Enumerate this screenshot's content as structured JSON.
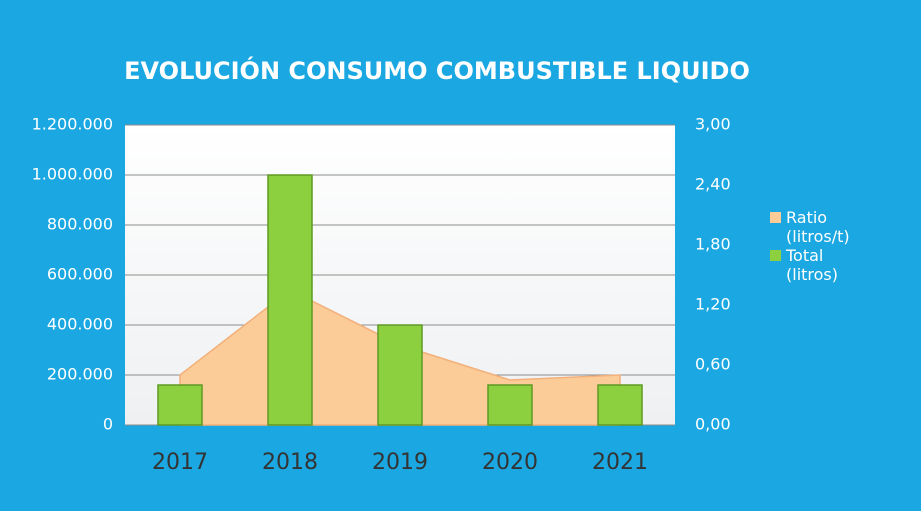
{
  "chart_data": {
    "type": "bar",
    "title": "EVOLUCIÓN CONSUMO COMBUSTIBLE LIQUIDO",
    "categories": [
      "2017",
      "2018",
      "2019",
      "2020",
      "2021"
    ],
    "series": [
      {
        "name": "Ratio (litros/t)",
        "type": "area",
        "axis": "y2",
        "color": "#fbcb98",
        "values": [
          0.5,
          1.35,
          0.8,
          0.45,
          0.5
        ]
      },
      {
        "name": "Total (litros)",
        "type": "bar",
        "color": "#8ccf3f",
        "values": [
          160000,
          1000000,
          400000,
          160000,
          160000
        ]
      }
    ],
    "ylim": [
      0,
      1200000
    ],
    "yticks": [
      0,
      {
        "value": 200000,
        "label": "200.000"
      },
      {
        "value": 400000,
        "label": "400.000"
      },
      {
        "value": 600000,
        "label": "600.000"
      },
      {
        "value": 800000,
        "label": "800.000"
      },
      {
        "value": 1000000,
        "label": "1.000.000"
      },
      {
        "value": 1200000,
        "label": "1.200.000"
      }
    ],
    "y2lim": [
      0,
      3
    ],
    "y2ticks": [
      {
        "value": 0,
        "label": "0,00"
      },
      {
        "value": 0.6,
        "label": "0,60"
      },
      {
        "value": 1.2,
        "label": "1,20"
      },
      {
        "value": 1.8,
        "label": "1,80"
      },
      {
        "value": 2.4,
        "label": "2,40"
      },
      {
        "value": 3,
        "label": "3,00"
      }
    ],
    "grid": true,
    "legend": "right"
  }
}
